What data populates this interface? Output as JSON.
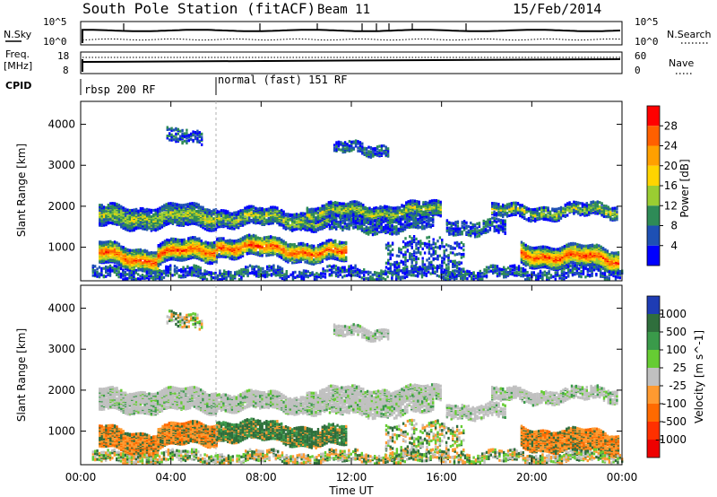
{
  "header": {
    "station": "South Pole Station (fitACF)",
    "beam": "Beam 11",
    "date": "15/Feb/2014"
  },
  "top_panels": {
    "nsky_label": "N.Sky",
    "nsky_ticks": [
      "10^5",
      "10^0"
    ],
    "nsearch_label": "N.Search",
    "nsearch_ticks": [
      "10^5",
      "10^0"
    ],
    "freq_label": "Freq.",
    "freq_unit": "[MHz]",
    "freq_ticks": [
      "18",
      "8"
    ],
    "nave_label": "Nave",
    "nave_ticks": [
      "60",
      "0"
    ],
    "cpid_label": "CPID",
    "cpid_modes": [
      {
        "name": "rbsp 200 RF",
        "start_hour": 0
      },
      {
        "name": "normal (fast) 151 RF",
        "start_hour": 6
      }
    ]
  },
  "chart_data": [
    {
      "type": "heatmap",
      "title": "",
      "xlabel": "Time UT",
      "ylabel": "Slant Range [km]",
      "x_ticks": [
        "00:00",
        "04:00",
        "08:00",
        "12:00",
        "16:00",
        "20:00",
        "00:00"
      ],
      "y_ticks": [
        1000,
        2000,
        3000,
        4000
      ],
      "xlim_hours": [
        0,
        24
      ],
      "ylim_km": [
        180,
        4560
      ],
      "colorbar": {
        "label": "Power [dB]",
        "ticks": [
          "28",
          "24",
          "20",
          "16",
          "12",
          "8",
          "4"
        ],
        "colors": [
          "#ff0000",
          "#ff6000",
          "#ffa000",
          "#ffd400",
          "#9acd32",
          "#2e8b57",
          "#1e50b4",
          "#0000ff"
        ]
      }
    },
    {
      "type": "heatmap",
      "title": "",
      "xlabel": "Time UT",
      "ylabel": "Slant Range [km]",
      "x_ticks": [
        "00:00",
        "04:00",
        "08:00",
        "12:00",
        "16:00",
        "20:00",
        "00:00"
      ],
      "y_ticks": [
        1000,
        2000,
        3000,
        4000
      ],
      "xlim_hours": [
        0,
        24
      ],
      "ylim_km": [
        180,
        4560
      ],
      "colorbar": {
        "label": "Velocity [m s^-1]",
        "ticks": [
          "1000",
          "500",
          "100",
          "25",
          "-25",
          "-100",
          "-500",
          "-1000"
        ],
        "colors": [
          "#1e3cb4",
          "#2f6e3c",
          "#3a9a4a",
          "#66cc33",
          "#c0c0c0",
          "#ff9a30",
          "#ff6a00",
          "#ff3000",
          "#ee0000"
        ]
      }
    }
  ]
}
